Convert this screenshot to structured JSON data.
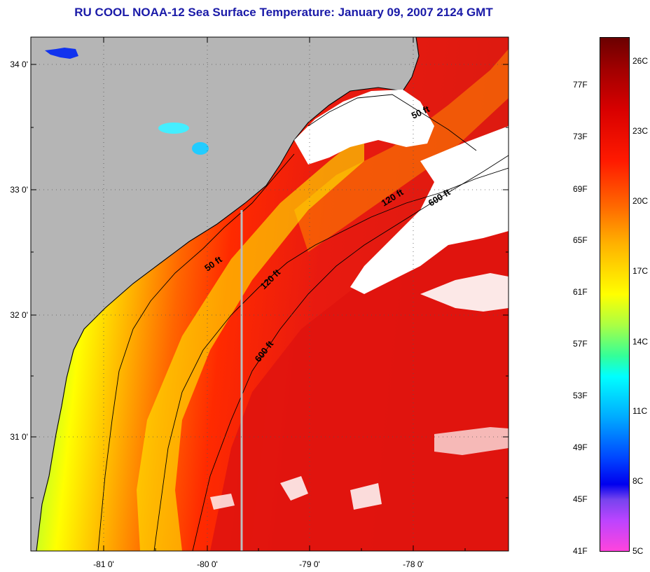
{
  "title": "RU COOL  NOAA-12  Sea Surface Temperature:  January 09, 2007 2124 GMT",
  "map": {
    "lat_labels": [
      "34 0'",
      "33 0'",
      "32 0'",
      "31 0'"
    ],
    "lon_labels": [
      "-81 0'",
      "-80 0'",
      "-79 0'",
      "-78 0'"
    ],
    "depth_labels": [
      {
        "id": "50ft-north",
        "text": "50 ft"
      },
      {
        "id": "120ft-north",
        "text": "120 ft"
      },
      {
        "id": "600ft-north",
        "text": "600 ft"
      },
      {
        "id": "50ft-south",
        "text": "50 ft"
      },
      {
        "id": "120ft-south",
        "text": "120 ft"
      },
      {
        "id": "600ft-south",
        "text": "600 ft"
      }
    ],
    "colors": {
      "land": "#b5b5b5",
      "cloud": "#ffffff",
      "warm": "#e81a10",
      "cool": "#22ffcc"
    }
  },
  "colorbar": {
    "fahrenheit": [
      "77F",
      "73F",
      "69F",
      "65F",
      "61F",
      "57F",
      "53F",
      "49F",
      "45F",
      "41F"
    ],
    "celsius": [
      "26C",
      "23C",
      "20C",
      "17C",
      "14C",
      "11C",
      "8C",
      "5C"
    ]
  }
}
